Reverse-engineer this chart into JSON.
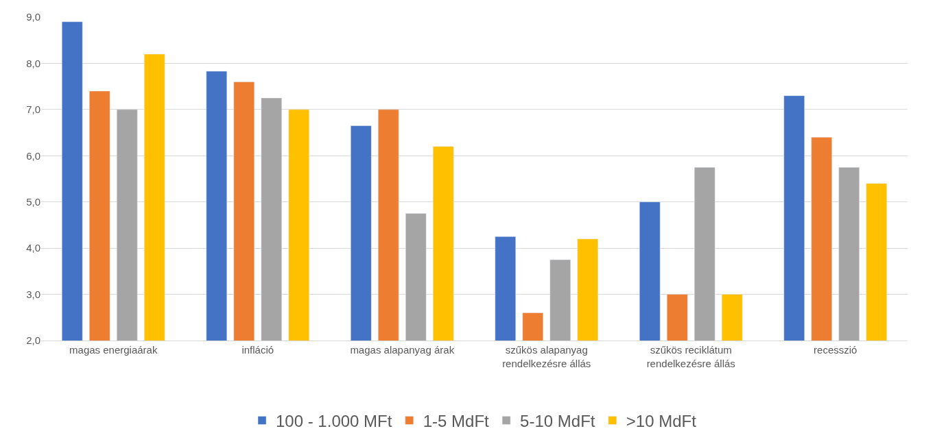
{
  "chart_data": {
    "type": "bar",
    "categories": [
      "magas energiaárak",
      "infláció",
      "magas alapanyag árak",
      "szűkös alapanyag\nrendelkezésre állás",
      "szűkös reciklátum\nrendelkezésre állás",
      "recesszió"
    ],
    "series": [
      {
        "name": "100 - 1.000 MFt",
        "color": "#4472c4",
        "values": [
          8.9,
          7.83,
          6.65,
          4.25,
          5.0,
          7.3
        ]
      },
      {
        "name": "1-5 MdFt",
        "color": "#ed7d31",
        "values": [
          7.4,
          7.6,
          7.0,
          2.6,
          3.0,
          6.4
        ]
      },
      {
        "name": "5-10 MdFt",
        "color": "#a5a5a5",
        "values": [
          7.0,
          7.25,
          4.75,
          3.75,
          5.75,
          5.75
        ]
      },
      {
        "name": ">10 MdFt",
        "color": "#ffc000",
        "values": [
          8.2,
          7.0,
          6.2,
          4.2,
          3.0,
          5.4
        ]
      }
    ],
    "ylim": [
      2,
      9
    ],
    "yticks": [
      {
        "value": 2,
        "label": "2,0"
      },
      {
        "value": 3,
        "label": "3,0"
      },
      {
        "value": 4,
        "label": "4,0"
      },
      {
        "value": 5,
        "label": "5,0"
      },
      {
        "value": 6,
        "label": "6,0"
      },
      {
        "value": 7,
        "label": "7,0"
      },
      {
        "value": 8,
        "label": "8,0"
      },
      {
        "value": 9,
        "label": "9,0"
      }
    ],
    "grid": "y",
    "legend": "bottom"
  }
}
